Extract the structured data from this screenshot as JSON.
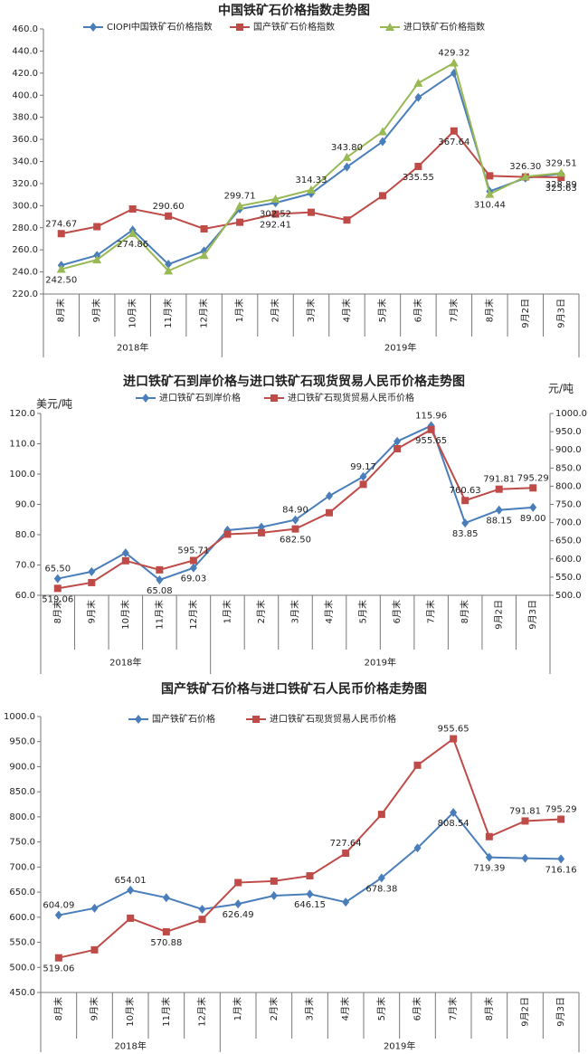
{
  "chart_data": [
    {
      "type": "line",
      "title": "中国铁矿石价格指数走势图",
      "groups": [
        {
          "name": "2018年",
          "categories": [
            "8月末",
            "9月末",
            "10月末",
            "11月末",
            "12月末"
          ]
        },
        {
          "name": "2019年",
          "categories": [
            "1月末",
            "2月末",
            "3月末",
            "4月末",
            "5月末",
            "6月末",
            "7月末",
            "8月末",
            "9月2日",
            "9月3日"
          ]
        }
      ],
      "ylim": [
        220,
        460
      ],
      "yticks": [
        {
          "value": 220,
          "label": "220.0"
        },
        {
          "value": 240,
          "label": "240.0"
        },
        {
          "value": 260,
          "label": "260.0"
        },
        {
          "value": 280,
          "label": "280.0"
        },
        {
          "value": 300,
          "label": "300.0"
        },
        {
          "value": 320,
          "label": "320.0"
        },
        {
          "value": 340,
          "label": "340.0"
        },
        {
          "value": 360,
          "label": "360.0"
        },
        {
          "value": 380,
          "label": "380.0"
        },
        {
          "value": 400,
          "label": "400.0"
        },
        {
          "value": 420,
          "label": "420.0"
        },
        {
          "value": 440,
          "label": "440.0"
        },
        {
          "value": 460,
          "label": "460.0"
        }
      ],
      "series": [
        {
          "name": "CIOPI中国铁矿石价格指数",
          "color": "#4a7ebb",
          "marker": "diamond",
          "values": [
            246,
            255,
            278,
            247,
            259,
            297,
            302.52,
            311,
            335,
            358,
            398,
            420,
            313,
            325,
            328.89
          ],
          "value_labels": [
            null,
            null,
            null,
            null,
            null,
            null,
            "302.52",
            null,
            null,
            null,
            null,
            null,
            null,
            null,
            "328.89"
          ]
        },
        {
          "name": "国产铁矿石价格指数",
          "color": "#be4b48",
          "marker": "square",
          "values": [
            274.67,
            281,
            297,
            290.6,
            279,
            285,
            292.41,
            294,
            287,
            309,
            335.55,
            367.64,
            327,
            326,
            325.63
          ],
          "value_labels": [
            "274.67",
            null,
            null,
            "290.60",
            null,
            null,
            "292.41",
            null,
            null,
            null,
            "335.55",
            "367.64",
            null,
            null,
            "325.63"
          ]
        },
        {
          "name": "进口铁矿石价格指数",
          "color": "#98b954",
          "marker": "triangle",
          "values": [
            242.5,
            251,
            274.86,
            241,
            255,
            299.71,
            306,
            314.33,
            343.8,
            367,
            411,
            429.32,
            310.44,
            326.3,
            329.51
          ],
          "value_labels": [
            "242.50",
            null,
            "274.86",
            null,
            null,
            "299.71",
            null,
            "314.33",
            "343.80",
            null,
            null,
            "429.32",
            "310.44",
            "326.30",
            "329.51"
          ]
        }
      ]
    },
    {
      "type": "line",
      "title": "进口铁矿石到岸价格与进口铁矿石现货贸易人民币价格走势图",
      "y_label": "美元/吨",
      "y2_label": "元/吨",
      "groups": [
        {
          "name": "2018年",
          "categories": [
            "8月末",
            "9月末",
            "10月末",
            "11月末",
            "12月末"
          ]
        },
        {
          "name": "2019年",
          "categories": [
            "1月末",
            "2月末",
            "3月末",
            "4月末",
            "5月末",
            "6月末",
            "7月末",
            "8月末",
            "9月2日",
            "9月3日"
          ]
        }
      ],
      "ylim": [
        60,
        120
      ],
      "yticks": [
        {
          "value": 60,
          "label": "60.0"
        },
        {
          "value": 70,
          "label": "70.0"
        },
        {
          "value": 80,
          "label": "80.0"
        },
        {
          "value": 90,
          "label": "90.0"
        },
        {
          "value": 100,
          "label": "100.0"
        },
        {
          "value": 110,
          "label": "110.0"
        },
        {
          "value": 120,
          "label": "120.0"
        }
      ],
      "y2lim": [
        500,
        1000
      ],
      "y2ticks": [
        {
          "value": 500,
          "label": "500.0"
        },
        {
          "value": 550,
          "label": "550.0"
        },
        {
          "value": 600,
          "label": "600.0"
        },
        {
          "value": 650,
          "label": "650.0"
        },
        {
          "value": 700,
          "label": "700.0"
        },
        {
          "value": 750,
          "label": "750.0"
        },
        {
          "value": 800,
          "label": "800.0"
        },
        {
          "value": 850,
          "label": "850.0"
        },
        {
          "value": 900,
          "label": "900.0"
        },
        {
          "value": 950,
          "label": "950.0"
        },
        {
          "value": 1000,
          "label": "1000.0"
        }
      ],
      "series": [
        {
          "name": "进口铁矿石到岸价格",
          "color": "#4a7ebb",
          "marker": "diamond",
          "values": [
            65.5,
            67.8,
            74,
            65.08,
            69.03,
            81.5,
            82.5,
            84.9,
            92.8,
            99.17,
            110.8,
            115.96,
            83.85,
            88.15,
            89.0
          ],
          "value_labels": [
            "65.50",
            null,
            null,
            "65.08",
            "69.03",
            null,
            null,
            "84.90",
            null,
            "99.17",
            null,
            "115.96",
            "83.85",
            "88.15",
            "89.00"
          ]
        },
        {
          "name": "进口铁矿石现货贸易人民币价格",
          "color": "#be4b48",
          "marker": "square",
          "axis": "y2",
          "values": [
            519.06,
            535,
            595,
            570,
            595.71,
            668,
            672,
            682.5,
            727,
            805,
            903,
            955.65,
            760.63,
            791.81,
            795.29
          ],
          "value_labels": [
            "519.06",
            null,
            null,
            null,
            "595.71",
            null,
            null,
            "682.50",
            null,
            null,
            null,
            "955.65",
            "760.63",
            "791.81",
            "795.29"
          ]
        }
      ]
    },
    {
      "type": "line",
      "title": "国产铁矿石价格与进口铁矿石人民币价格走势图",
      "groups": [
        {
          "name": "2018年",
          "categories": [
            "8月末",
            "9月末",
            "10月末",
            "11月末",
            "12月末"
          ]
        },
        {
          "name": "2019年",
          "categories": [
            "1月末",
            "2月末",
            "3月末",
            "4月末",
            "5月末",
            "6月末",
            "7月末",
            "8月末",
            "9月2日",
            "9月3日"
          ]
        }
      ],
      "ylim": [
        450,
        1000
      ],
      "yticks": [
        {
          "value": 450,
          "label": "450.0"
        },
        {
          "value": 500,
          "label": "500.0"
        },
        {
          "value": 550,
          "label": "550.0"
        },
        {
          "value": 600,
          "label": "600.0"
        },
        {
          "value": 650,
          "label": "650.0"
        },
        {
          "value": 700,
          "label": "700.0"
        },
        {
          "value": 750,
          "label": "750.0"
        },
        {
          "value": 800,
          "label": "800.0"
        },
        {
          "value": 850,
          "label": "850.0"
        },
        {
          "value": 900,
          "label": "900.0"
        },
        {
          "value": 950,
          "label": "950.0"
        },
        {
          "value": 1000,
          "label": "1000.0"
        }
      ],
      "series": [
        {
          "name": "国产铁矿石价格",
          "color": "#4a7ebb",
          "marker": "diamond",
          "values": [
            604.09,
            618,
            654.01,
            639,
            616,
            626.49,
            643,
            646.15,
            630,
            678.38,
            738,
            808.54,
            719.39,
            717.5,
            716.16
          ],
          "value_labels": [
            "604.09",
            null,
            "654.01",
            null,
            null,
            "626.49",
            null,
            "646.15",
            null,
            "678.38",
            null,
            "808.54",
            "719.39",
            null,
            "716.16"
          ]
        },
        {
          "name": "进口铁矿石现货贸易人民币价格",
          "color": "#be4b48",
          "marker": "square",
          "values": [
            519.06,
            535,
            598,
            570.88,
            595.71,
            669,
            672,
            682.5,
            727.64,
            805,
            903,
            955.65,
            760.63,
            791.81,
            795.29
          ],
          "value_labels": [
            "519.06",
            null,
            null,
            "570.88",
            null,
            null,
            null,
            null,
            "727.64",
            null,
            null,
            "955.65",
            null,
            "791.81",
            "795.29"
          ]
        }
      ]
    }
  ]
}
